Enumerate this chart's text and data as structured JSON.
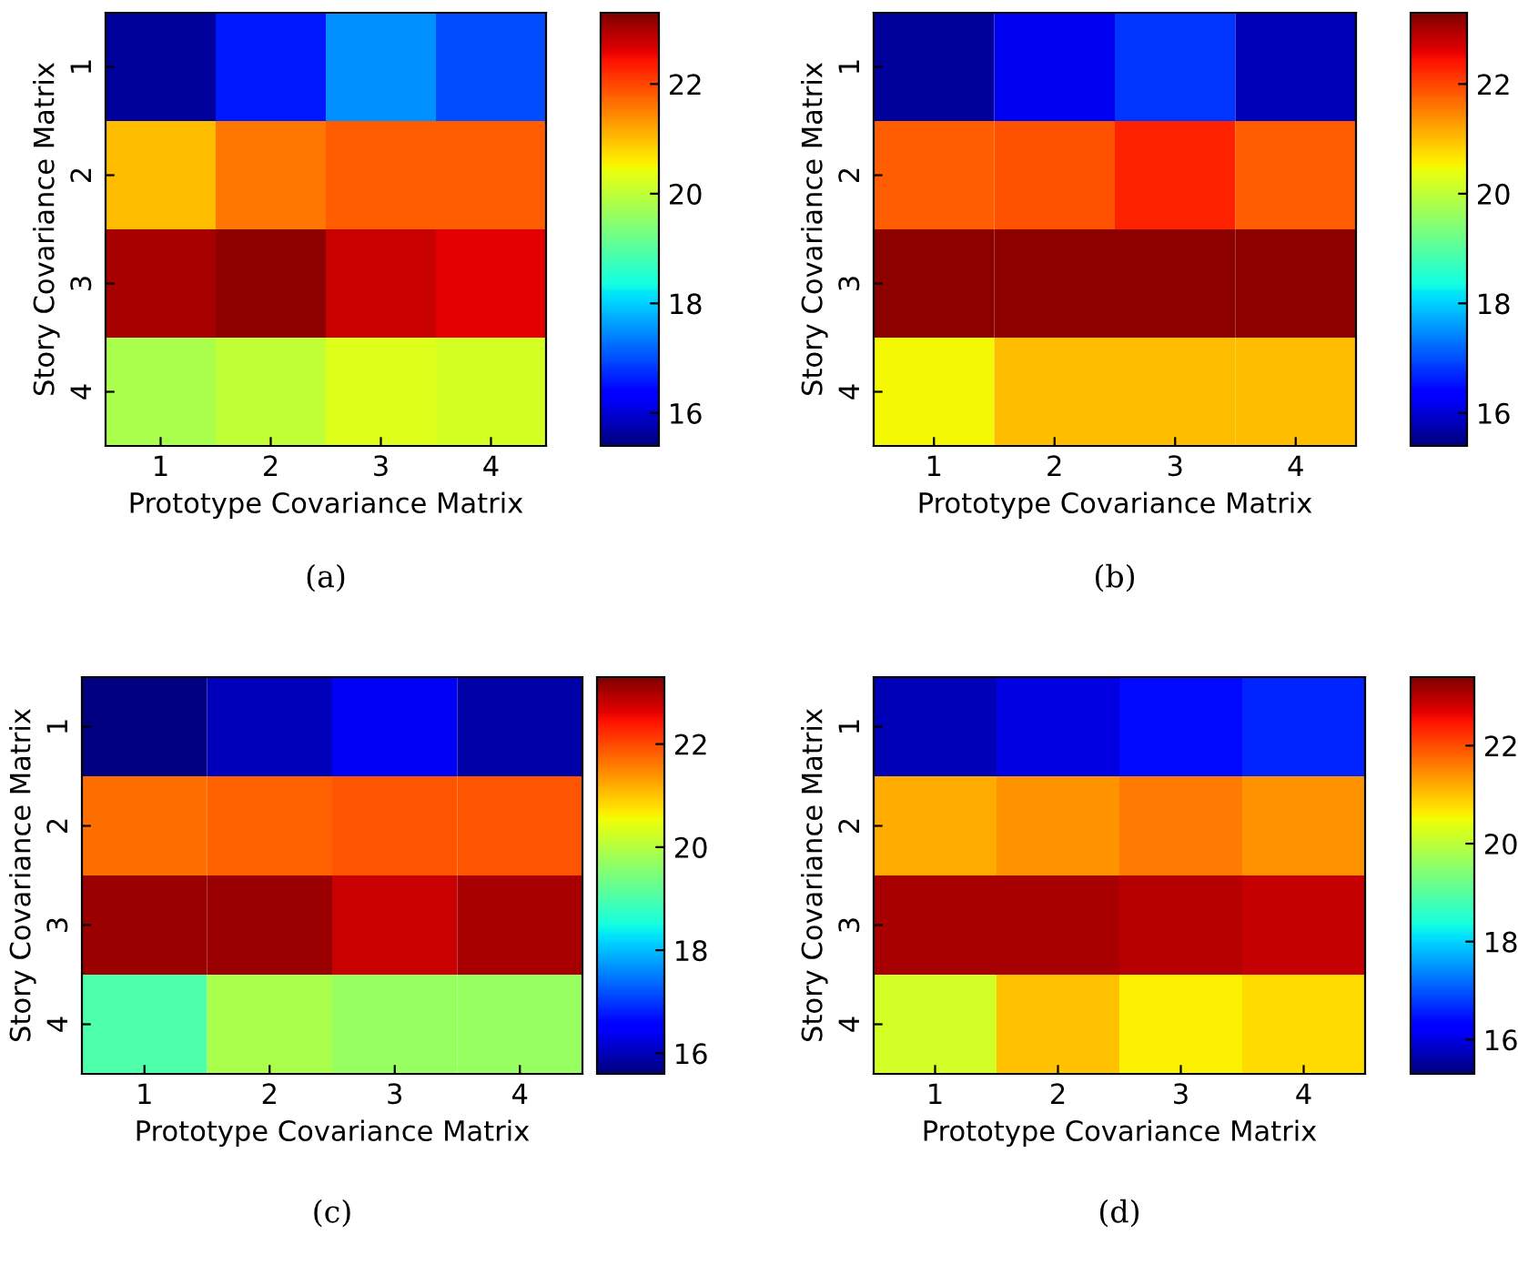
{
  "chart_data": [
    {
      "type": "heatmap",
      "xlabel": "Prototype Covariance Matrix",
      "ylabel": "Story Covariance Matrix",
      "categories": [
        "1",
        "2",
        "3",
        "4"
      ],
      "y_categories": [
        "1",
        "2",
        "3",
        "4"
      ],
      "cells": [
        [
          15.6,
          16.6,
          17.5,
          17.0
        ],
        [
          21.0,
          21.6,
          21.8,
          21.8
        ],
        [
          23.0,
          23.2,
          22.8,
          22.6
        ],
        [
          19.8,
          20.0,
          20.3,
          20.2
        ]
      ],
      "clim": [
        15.4,
        23.3
      ],
      "cticks": [
        16,
        18,
        20,
        22
      ],
      "annotations": [
        "(a)"
      ]
    },
    {
      "type": "heatmap",
      "xlabel": "Prototype Covariance Matrix",
      "ylabel": "Story Covariance Matrix",
      "categories": [
        "1",
        "2",
        "3",
        "4"
      ],
      "y_categories": [
        "1",
        "2",
        "3",
        "4"
      ],
      "cells": [
        [
          15.6,
          16.2,
          16.8,
          15.8
        ],
        [
          21.8,
          21.9,
          22.3,
          21.8
        ],
        [
          23.2,
          23.2,
          23.2,
          23.2
        ],
        [
          20.5,
          21.0,
          21.0,
          21.0
        ]
      ],
      "clim": [
        15.4,
        23.3
      ],
      "cticks": [
        16,
        18,
        20,
        22
      ],
      "annotations": [
        "(b)"
      ]
    },
    {
      "type": "heatmap",
      "xlabel": "Prototype Covariance Matrix",
      "ylabel": "Story Covariance Matrix",
      "categories": [
        "1",
        "2",
        "3",
        "4"
      ],
      "y_categories": [
        "1",
        "2",
        "3",
        "4"
      ],
      "cells": [
        [
          15.6,
          16.0,
          16.4,
          15.9
        ],
        [
          21.7,
          21.8,
          21.9,
          21.9
        ],
        [
          23.1,
          23.1,
          22.8,
          23.0
        ],
        [
          19.0,
          19.9,
          19.7,
          19.7
        ]
      ],
      "clim": [
        15.6,
        23.3
      ],
      "cticks": [
        16,
        18,
        20,
        22
      ],
      "annotations": [
        "(c)"
      ]
    },
    {
      "type": "heatmap",
      "xlabel": "Prototype Covariance Matrix",
      "ylabel": "Story Covariance Matrix",
      "categories": [
        "1",
        "2",
        "3",
        "4"
      ],
      "y_categories": [
        "1",
        "2",
        "3",
        "4"
      ],
      "cells": [
        [
          15.7,
          16.0,
          16.4,
          16.6
        ],
        [
          21.2,
          21.4,
          21.6,
          21.4
        ],
        [
          23.1,
          23.1,
          23.0,
          22.9
        ],
        [
          20.2,
          21.0,
          20.6,
          20.8
        ]
      ],
      "clim": [
        15.3,
        23.4
      ],
      "cticks": [
        16,
        18,
        20,
        22
      ],
      "annotations": [
        "(d)"
      ]
    }
  ]
}
